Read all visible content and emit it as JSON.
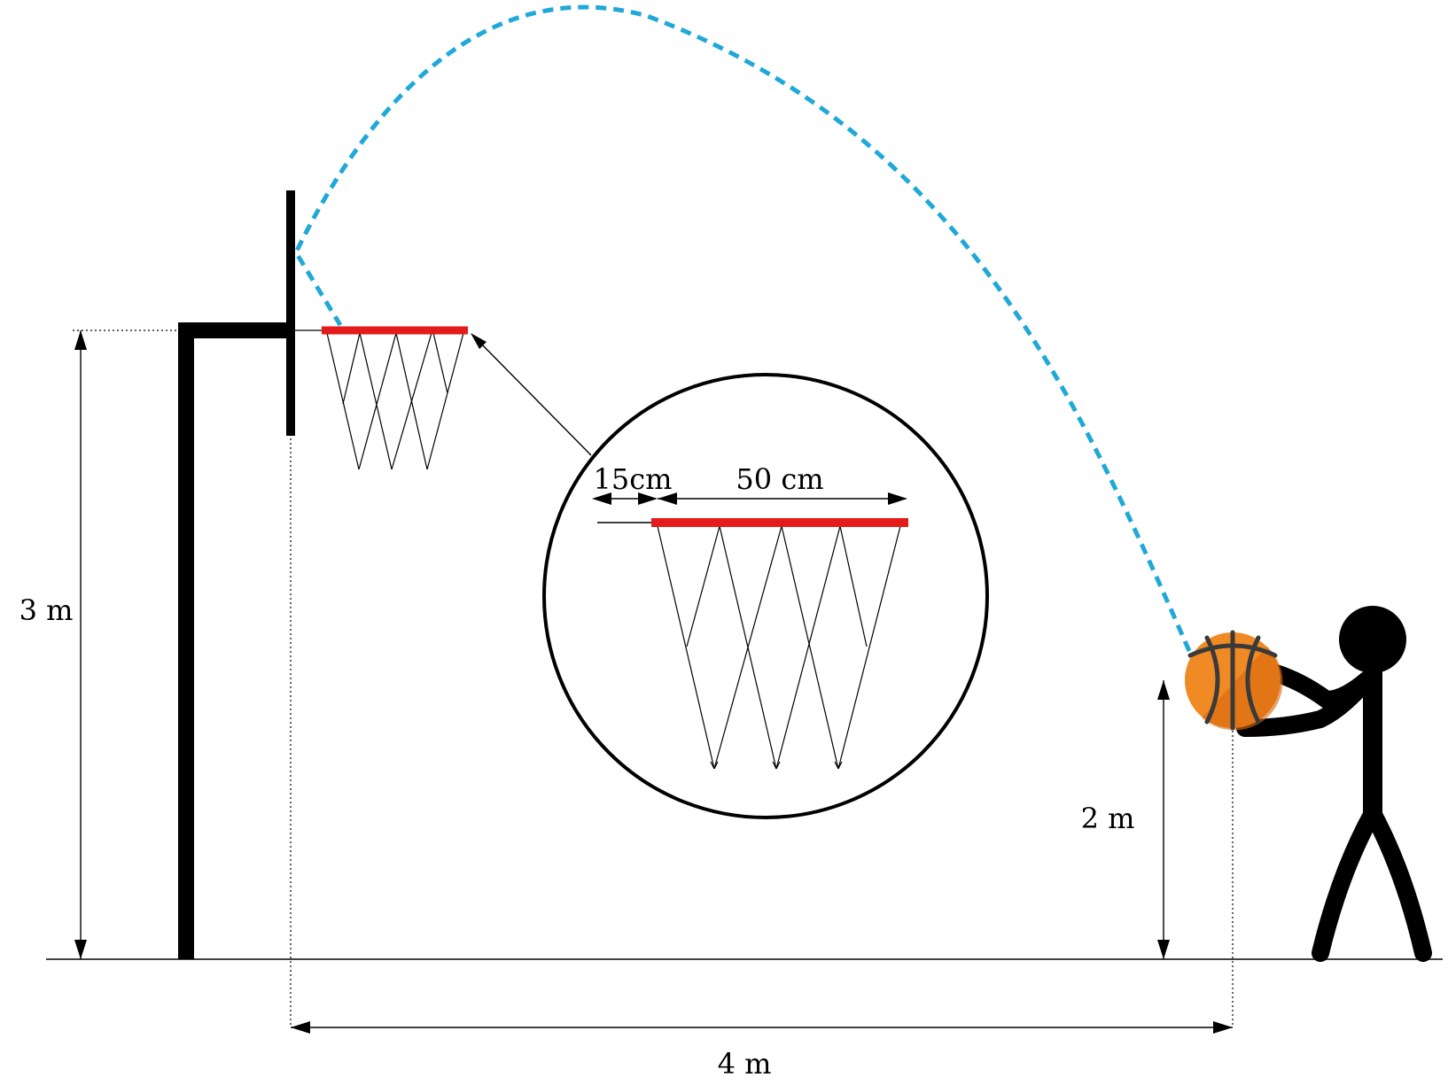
{
  "labels": {
    "hoop_height": "3 m",
    "release_height": "2 m",
    "horizontal_distance": "4 m",
    "backboard_gap": "15cm",
    "rim_diameter": "50 cm"
  },
  "colors": {
    "trajectory": "#1fa8d8",
    "rim": "#e51a1a",
    "ball": "#f08a24",
    "ball_shade": "#d9690f",
    "ball_seams": "#3a3a3a",
    "ink": "#000000"
  },
  "icons": {
    "ball": "basketball-icon",
    "player": "stick-figure-icon"
  }
}
